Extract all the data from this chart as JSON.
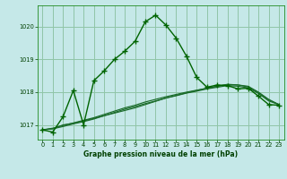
{
  "title": "Graphe pression niveau de la mer (hPa)",
  "background_color": "#c5e8e8",
  "grid_color": "#90c4a8",
  "line_color_main": "#006400",
  "line_color_flat": "#1a6b2a",
  "xlim": [
    -0.5,
    23.5
  ],
  "ylim": [
    1016.55,
    1020.65
  ],
  "yticks": [
    1017,
    1018,
    1019,
    1020
  ],
  "xticks": [
    0,
    1,
    2,
    3,
    4,
    5,
    6,
    7,
    8,
    9,
    10,
    11,
    12,
    13,
    14,
    15,
    16,
    17,
    18,
    19,
    20,
    21,
    22,
    23
  ],
  "series1_x": [
    0,
    1,
    2,
    3,
    4,
    5,
    6,
    7,
    8,
    9,
    10,
    11,
    12,
    13,
    14,
    15,
    16,
    17,
    18,
    19,
    20,
    21,
    22,
    23
  ],
  "series1": [
    1016.85,
    1016.78,
    1017.25,
    1018.05,
    1017.0,
    1018.35,
    1018.65,
    1019.0,
    1019.25,
    1019.55,
    1020.15,
    1020.35,
    1020.05,
    1019.65,
    1019.1,
    1018.45,
    1018.15,
    1018.22,
    1018.2,
    1018.1,
    1018.12,
    1017.88,
    1017.62,
    1017.6
  ],
  "series2": [
    1016.85,
    1016.88,
    1017.0,
    1017.05,
    1017.12,
    1017.2,
    1017.28,
    1017.36,
    1017.44,
    1017.52,
    1017.62,
    1017.72,
    1017.82,
    1017.9,
    1017.98,
    1018.05,
    1018.12,
    1018.18,
    1018.24,
    1018.22,
    1018.18,
    1018.0,
    1017.78,
    1017.62
  ],
  "series3": [
    1016.85,
    1016.9,
    1016.98,
    1017.06,
    1017.14,
    1017.22,
    1017.32,
    1017.42,
    1017.52,
    1017.6,
    1017.7,
    1017.78,
    1017.86,
    1017.93,
    1018.0,
    1018.06,
    1018.12,
    1018.18,
    1018.23,
    1018.22,
    1018.16,
    1017.99,
    1017.76,
    1017.62
  ],
  "series4": [
    1016.85,
    1016.88,
    1016.95,
    1017.03,
    1017.1,
    1017.18,
    1017.28,
    1017.38,
    1017.48,
    1017.56,
    1017.65,
    1017.73,
    1017.82,
    1017.89,
    1017.97,
    1018.03,
    1018.1,
    1018.15,
    1018.2,
    1018.18,
    1018.13,
    1017.96,
    1017.73,
    1017.62
  ]
}
